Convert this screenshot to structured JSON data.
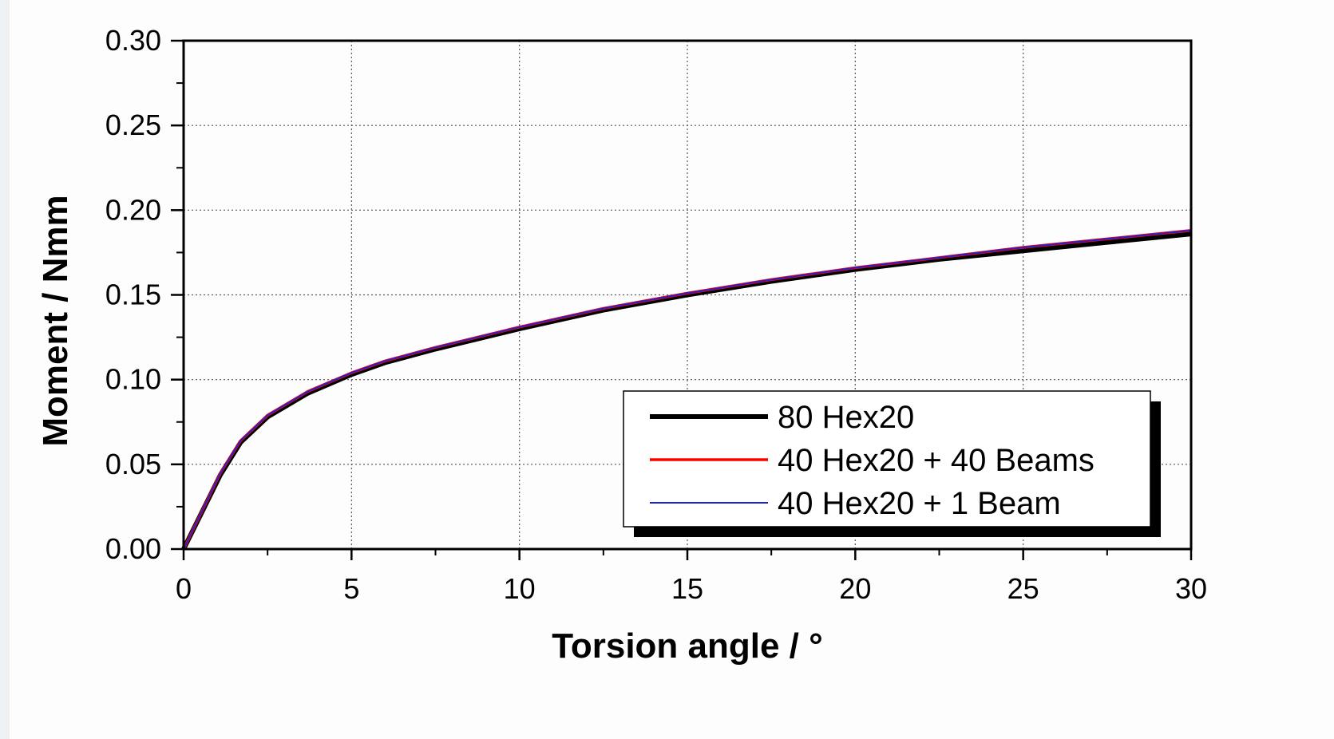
{
  "chart_data": {
    "type": "line",
    "xlabel": "Torsion angle / °",
    "ylabel": "Moment / Nmm",
    "xlim": [
      0,
      30
    ],
    "ylim": [
      0,
      0.3
    ],
    "x_ticks": [
      "0",
      "5",
      "10",
      "15",
      "20",
      "25",
      "30"
    ],
    "y_ticks": [
      "0.00",
      "0.05",
      "0.10",
      "0.15",
      "0.20",
      "0.25",
      "0.30"
    ],
    "grid": true,
    "legend_position": "bottom-right",
    "series": [
      {
        "name": "80 Hex20",
        "color": "#000000",
        "x": [
          0,
          1.1,
          1.7,
          2.5,
          3.7,
          5,
          6,
          7.5,
          10,
          12.5,
          15,
          17.5,
          20,
          22.5,
          25,
          27.5,
          30
        ],
        "y": [
          0,
          0.044,
          0.063,
          0.078,
          0.092,
          0.103,
          0.11,
          0.118,
          0.13,
          0.141,
          0.15,
          0.158,
          0.165,
          0.171,
          0.176,
          0.181,
          0.186
        ]
      },
      {
        "name": "40 Hex20 + 40 Beams",
        "color": "#ff0000",
        "x": [
          0,
          1.1,
          1.7,
          2.5,
          3.7,
          5,
          6,
          7.5,
          10,
          12.5,
          15,
          17.5,
          20,
          22.5,
          25,
          27.5,
          30
        ],
        "y": [
          0,
          0.045,
          0.064,
          0.079,
          0.093,
          0.104,
          0.111,
          0.119,
          0.131,
          0.142,
          0.151,
          0.159,
          0.166,
          0.172,
          0.178,
          0.183,
          0.188
        ]
      },
      {
        "name": "40 Hex20 + 1 Beam",
        "color": "#2222cc",
        "x": [
          0,
          1.1,
          1.7,
          2.5,
          3.7,
          5,
          6,
          7.5,
          10,
          12.5,
          15,
          17.5,
          20,
          22.5,
          25,
          27.5,
          30
        ],
        "y": [
          0,
          0.045,
          0.064,
          0.079,
          0.093,
          0.104,
          0.111,
          0.119,
          0.131,
          0.142,
          0.151,
          0.159,
          0.166,
          0.172,
          0.178,
          0.183,
          0.188
        ]
      }
    ]
  }
}
